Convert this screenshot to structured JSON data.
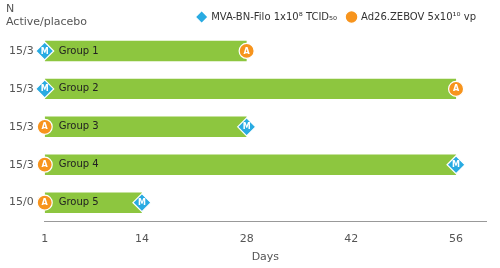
{
  "chart_data": {
    "type": "bar",
    "orientation": "horizontal",
    "categories": [
      "15/3",
      "15/3",
      "15/3",
      "15/3",
      "15/0"
    ],
    "ylabel": "N\nActive/placebo",
    "xlabel": "Days",
    "xlim": [
      1,
      60
    ],
    "xticks": [
      1,
      14,
      28,
      42,
      56
    ],
    "grid": false,
    "legend": "upper right",
    "series": [
      {
        "type": "bar",
        "color": "#8DC63F",
        "values": [
          [
            1,
            28
          ],
          [
            1,
            56
          ],
          [
            1,
            28
          ],
          [
            1,
            56
          ],
          [
            1,
            14
          ]
        ],
        "annotations": [
          "Group 1",
          "Group 2",
          "Group 3",
          "Group 4",
          "Group 5"
        ]
      },
      {
        "name": "MVA-BN-Filo 1x10⁸ TCID₅₀",
        "type": "scatter",
        "marker": "diamond",
        "marker_text": "M",
        "color": "#29ABE2",
        "values": [
          1,
          1,
          28,
          56,
          14
        ]
      },
      {
        "name": "Ad26.ZEBOV 5x10¹⁰ vp",
        "type": "scatter",
        "marker": "circle",
        "marker_text": "A",
        "color": "#F7941D",
        "values": [
          28,
          56,
          1,
          1,
          1
        ]
      }
    ]
  }
}
